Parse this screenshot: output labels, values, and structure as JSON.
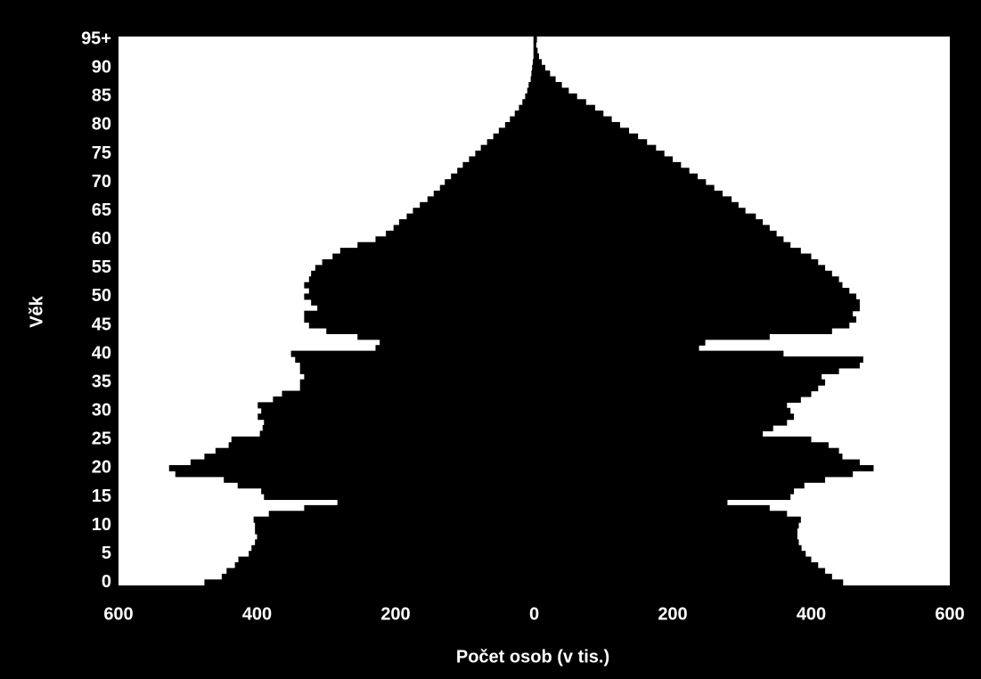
{
  "chart_data": {
    "type": "bar",
    "orientation": "horizontal",
    "ylabel": "Věk",
    "xlabel": "Počet osob (v tis.)",
    "categories": [
      "0",
      null,
      null,
      null,
      null,
      "5",
      null,
      null,
      null,
      null,
      "10",
      null,
      null,
      null,
      null,
      "15",
      null,
      null,
      null,
      null,
      "20",
      null,
      null,
      null,
      null,
      "25",
      null,
      null,
      null,
      null,
      "30",
      null,
      null,
      null,
      null,
      "35",
      null,
      null,
      null,
      null,
      "40",
      null,
      null,
      null,
      null,
      "45",
      null,
      null,
      null,
      null,
      "50",
      null,
      null,
      null,
      null,
      "55",
      null,
      null,
      null,
      null,
      "60",
      null,
      null,
      null,
      null,
      "65",
      null,
      null,
      null,
      null,
      "70",
      null,
      null,
      null,
      null,
      "75",
      null,
      null,
      null,
      null,
      "80",
      null,
      null,
      null,
      null,
      "85",
      null,
      null,
      null,
      null,
      "90",
      null,
      null,
      null,
      null,
      "95+"
    ],
    "series": [
      {
        "color": "#000000",
        "values": [
          -476,
          -451,
          -444,
          -432,
          -427,
          -412,
          -408,
          -403,
          -400,
          -403,
          -403,
          -405,
          -383,
          -332,
          -284,
          -390,
          -394,
          -428,
          -448,
          -518,
          -527,
          -496,
          -476,
          -460,
          -441,
          -437,
          -396,
          -392,
          -390,
          -399,
          -394,
          -399,
          -377,
          -364,
          -338,
          -338,
          -332,
          -338,
          -338,
          -345,
          -351,
          -229,
          -223,
          -255,
          -300,
          -325,
          -332,
          -332,
          -313,
          -322,
          -332,
          -325,
          -332,
          -325,
          -322,
          -316,
          -306,
          -291,
          -280,
          -255,
          -229,
          -214,
          -203,
          -195,
          -184,
          -175,
          -165,
          -154,
          -145,
          -136,
          -129,
          -120,
          -111,
          -103,
          -94,
          -85,
          -77,
          -68,
          -59,
          -51,
          -42,
          -35,
          -28,
          -22,
          -17,
          -13,
          -10,
          -8,
          -5,
          -4,
          -3,
          -2,
          -1,
          -1,
          -1,
          -1
        ]
      },
      {
        "color": "#000000",
        "values": [
          446,
          430,
          420,
          410,
          400,
          392,
          386,
          382,
          380,
          380,
          382,
          385,
          365,
          340,
          279,
          370,
          375,
          390,
          420,
          460,
          490,
          470,
          445,
          440,
          425,
          400,
          330,
          345,
          365,
          375,
          370,
          365,
          385,
          400,
          410,
          420,
          415,
          440,
          470,
          475,
          360,
          238,
          247,
          340,
          430,
          455,
          465,
          460,
          470,
          470,
          465,
          455,
          445,
          440,
          430,
          420,
          410,
          400,
          385,
          370,
          360,
          350,
          340,
          330,
          320,
          305,
          295,
          285,
          272,
          260,
          248,
          236,
          224,
          212,
          200,
          188,
          176,
          163,
          150,
          137,
          124,
          112,
          100,
          88,
          75,
          62,
          50,
          40,
          31,
          23,
          16,
          11,
          7,
          5,
          3,
          4
        ]
      }
    ],
    "xlim": [
      -600,
      600
    ],
    "xticks": [
      {
        "value": -600,
        "label": "600"
      },
      {
        "value": -400,
        "label": "400"
      },
      {
        "value": -200,
        "label": "200"
      },
      0,
      200,
      400,
      600
    ],
    "background": "#000000",
    "plot_background": "#ffffff"
  }
}
